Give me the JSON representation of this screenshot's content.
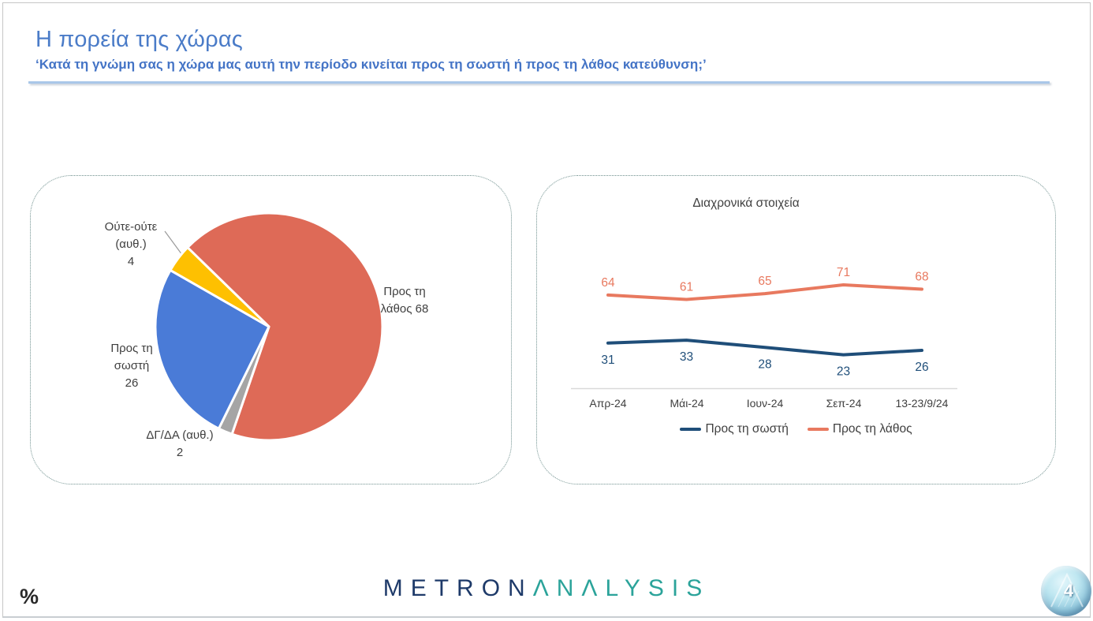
{
  "header": {
    "title": "Η πορεία της χώρας",
    "subtitle": "‘Κατά τη γνώμη σας η χώρα μας αυτή την περίοδο κινείται προς τη σωστή ή προς τη λάθος κατεύθυνση;’"
  },
  "chart_data": [
    {
      "type": "pie",
      "unit": "%",
      "rotation_deg": 314.2,
      "slices": [
        {
          "label": "Προς τη λάθος",
          "value": 68,
          "color": "#de6a57"
        },
        {
          "label": "ΔΓ/ΔΑ (αυθ.)",
          "value": 2,
          "color": "#a5a5a5"
        },
        {
          "label": "Προς τη σωστή",
          "value": 26,
          "color": "#4a7bd7"
        },
        {
          "label": "Ούτε-ούτε (αυθ.)",
          "value": 4,
          "color": "#fec001"
        }
      ],
      "callouts": {
        "lathos": {
          "lines": [
            "Προς τη",
            "λάθος 68"
          ]
        },
        "oute": {
          "lines": [
            "Ούτε-ούτε",
            "(αυθ.)",
            "4"
          ]
        },
        "sosti": {
          "lines": [
            "Προς τη",
            "σωστή",
            "26"
          ]
        },
        "dgda": {
          "lines": [
            "ΔΓ/ΔΑ (αυθ.)",
            "2"
          ]
        }
      }
    },
    {
      "type": "line",
      "title": "Διαχρονικά στοιχεία",
      "categories": [
        "Απρ-24",
        "Μάι-24",
        "Ιουν-24",
        "Σεπ-24",
        "13-23/9/24"
      ],
      "series": [
        {
          "name": "Προς τη σωστή",
          "color": "#1f4e79",
          "values": [
            31,
            33,
            28,
            23,
            26
          ]
        },
        {
          "name": "Προς τη λάθος",
          "color": "#e8795f",
          "values": [
            64,
            61,
            65,
            71,
            68
          ]
        }
      ],
      "ylim": [
        0,
        80
      ],
      "grid": false,
      "legend_position": "bottom"
    }
  ],
  "footer": {
    "percent": "%",
    "logo_metron": "METRON",
    "logo_analysis": "ΛNΛLYSIS",
    "page": "4"
  }
}
